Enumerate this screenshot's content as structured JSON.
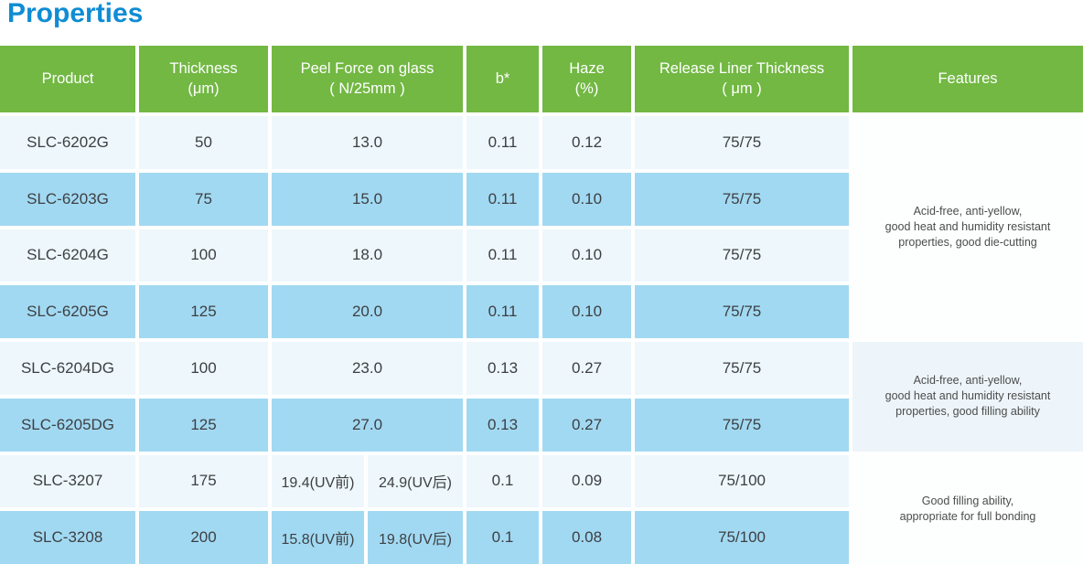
{
  "page_title": "Properties",
  "colors": {
    "title_blue": "#0f8cd4",
    "header_green": "#72b843",
    "row_light": "#eef7fb",
    "row_blue": "#a2d9f2",
    "features_pale": "#edf5fa",
    "body_text": "#3d4043"
  },
  "table": {
    "headers": {
      "product": "Product",
      "thickness": "Thickness\n(μm)",
      "peel_force": "Peel Force on glass\n( N/25mm )",
      "b_star": "b*",
      "haze": "Haze\n(%)",
      "release_liner": "Release Liner Thickness\n( μm )",
      "features": "Features"
    },
    "rows": [
      {
        "product": "SLC-6202G",
        "thickness": "50",
        "peel": "13.0",
        "b": "0.11",
        "haze": "0.12",
        "liner": "75/75"
      },
      {
        "product": "SLC-6203G",
        "thickness": "75",
        "peel": "15.0",
        "b": "0.11",
        "haze": "0.10",
        "liner": "75/75"
      },
      {
        "product": "SLC-6204G",
        "thickness": "100",
        "peel": "18.0",
        "b": "0.11",
        "haze": "0.10",
        "liner": "75/75"
      },
      {
        "product": "SLC-6205G",
        "thickness": "125",
        "peel": "20.0",
        "b": "0.11",
        "haze": "0.10",
        "liner": "75/75"
      },
      {
        "product": "SLC-6204DG",
        "thickness": "100",
        "peel": "23.0",
        "b": "0.13",
        "haze": "0.27",
        "liner": "75/75"
      },
      {
        "product": "SLC-6205DG",
        "thickness": "125",
        "peel": "27.0",
        "b": "0.13",
        "haze": "0.27",
        "liner": "75/75"
      },
      {
        "product": "SLC-3207",
        "thickness": "175",
        "peel_pre": "19.4(UV前)",
        "peel_post": "24.9(UV后)",
        "b": "0.1",
        "haze": "0.09",
        "liner": "75/100"
      },
      {
        "product": "SLC-3208",
        "thickness": "200",
        "peel_pre": "15.8(UV前)",
        "peel_post": "19.8(UV后)",
        "b": "0.1",
        "haze": "0.08",
        "liner": "75/100"
      }
    ],
    "feature_groups": [
      {
        "rows": "SLC-6202G – SLC-6205G",
        "text": "Acid-free, anti-yellow,\ngood heat and humidity resistant\nproperties, good die-cutting"
      },
      {
        "rows": "SLC-6204DG – SLC-6205DG",
        "text": "Acid-free, anti-yellow,\ngood heat and humidity resistant\nproperties, good filling ability"
      },
      {
        "rows": "SLC-3207 – SLC-3208",
        "text": "Good filling ability,\nappropriate for full bonding"
      }
    ]
  }
}
